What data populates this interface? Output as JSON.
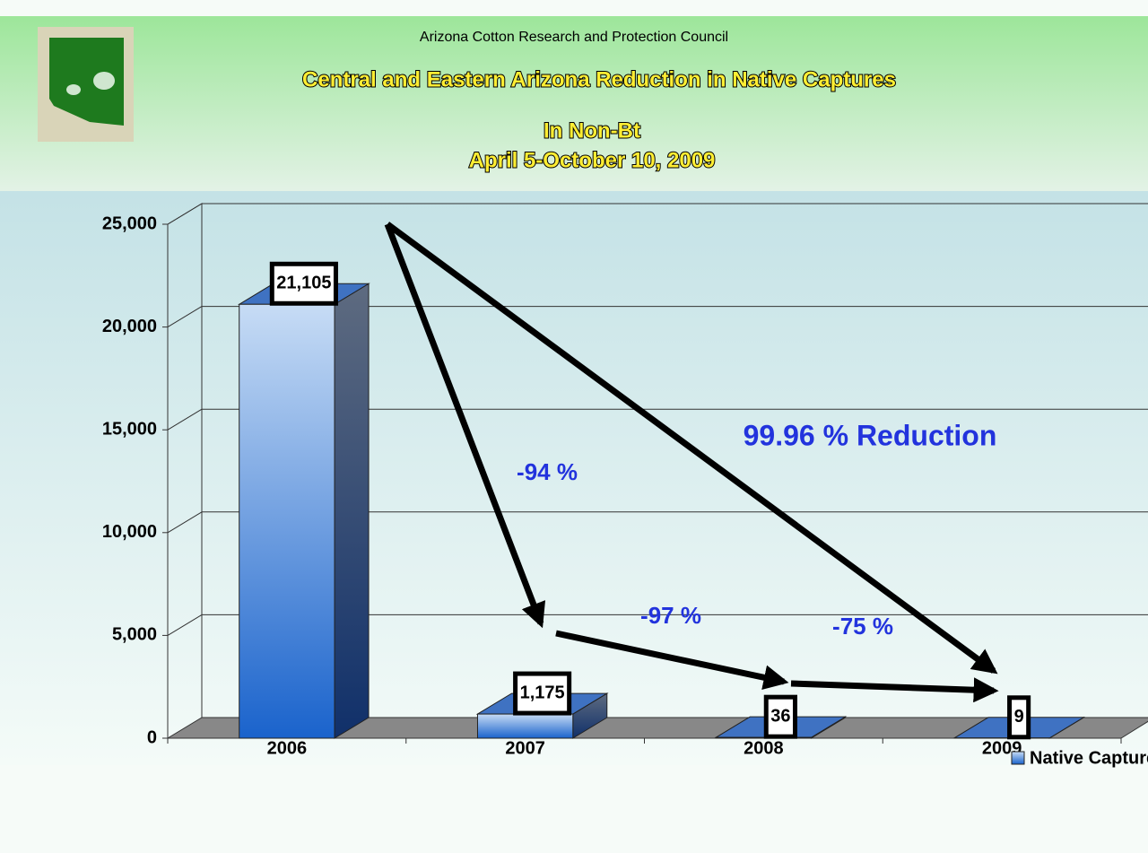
{
  "chart_data": {
    "type": "bar3d",
    "header": "Arizona Cotton Research and Protection Council",
    "title": "Central and Eastern Arizona Reduction in Native Captures",
    "subtitle": [
      "In Non-Bt",
      "April 5-October 10, 2009"
    ],
    "categories": [
      "2006",
      "2007",
      "2008",
      "2009"
    ],
    "series": [
      {
        "name": "Native Captures",
        "color": "#3366cc",
        "values": [
          21105,
          1175,
          36,
          9
        ],
        "value_labels": [
          "21,105",
          "1,175",
          "36",
          "9"
        ]
      }
    ],
    "ylim": [
      0,
      25000
    ],
    "yticks": [
      0,
      {
        "value": 5000,
        "label": "5,000"
      },
      {
        "value": 10000,
        "label": "10,000"
      },
      {
        "value": 15000,
        "label": "15,000"
      },
      {
        "value": 20000,
        "label": "20,000"
      },
      {
        "value": 25000,
        "label": "25,000"
      }
    ],
    "grid": true,
    "legend": "bottom-right",
    "annotations": [
      "-94 %",
      "99.96 % Reduction",
      "-97 %",
      "-75 %"
    ]
  }
}
